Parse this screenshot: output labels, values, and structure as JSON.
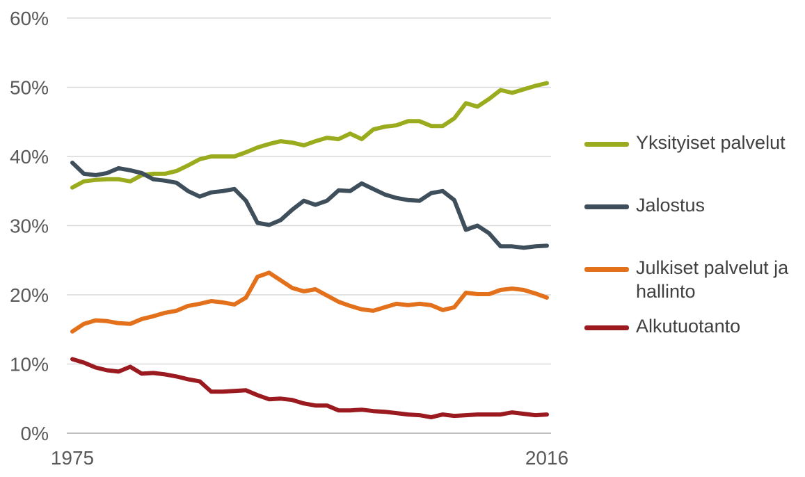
{
  "chart_data": {
    "type": "line",
    "x_start": 1975,
    "x_end": 2016,
    "xtick_labels": [
      "1975",
      "2016"
    ],
    "yticks": [
      0,
      10,
      20,
      30,
      40,
      50,
      60
    ],
    "ytick_labels": [
      "0%",
      "10%",
      "20%",
      "30%",
      "40%",
      "50%",
      "60%"
    ],
    "ylim": [
      0,
      60
    ],
    "grid": true,
    "legend_position": "right",
    "series": [
      {
        "name": "Yksityiset palvelut",
        "color": "#9bab1e",
        "values": [
          35.5,
          36.4,
          36.6,
          36.7,
          36.7,
          36.4,
          37.3,
          37.5,
          37.5,
          37.9,
          38.7,
          39.6,
          40.0,
          40.0,
          40.0,
          40.6,
          41.3,
          41.8,
          42.2,
          42.0,
          41.6,
          42.2,
          42.7,
          42.5,
          43.3,
          42.5,
          43.9,
          44.3,
          44.5,
          45.1,
          45.1,
          44.4,
          44.4,
          45.5,
          47.7,
          47.2,
          48.3,
          49.6,
          49.2,
          49.7,
          50.2,
          50.6
        ]
      },
      {
        "name": "Jalostus",
        "color": "#3e4f5b",
        "values": [
          39.1,
          37.5,
          37.3,
          37.6,
          38.3,
          38.0,
          37.6,
          36.7,
          36.5,
          36.2,
          35.0,
          34.2,
          34.8,
          35.0,
          35.3,
          33.6,
          30.4,
          30.1,
          30.8,
          32.3,
          33.6,
          33.0,
          33.6,
          35.1,
          35.0,
          36.1,
          35.3,
          34.5,
          34.0,
          33.7,
          33.6,
          34.7,
          35.0,
          33.7,
          29.4,
          30.0,
          28.9,
          27.0,
          27.0,
          26.8,
          27.0,
          27.1
        ]
      },
      {
        "name": "Julkiset palvelut ja hallinto",
        "color": "#e3701b",
        "values": [
          14.7,
          15.8,
          16.3,
          16.2,
          15.9,
          15.8,
          16.5,
          16.9,
          17.4,
          17.7,
          18.4,
          18.7,
          19.1,
          18.9,
          18.6,
          19.6,
          22.6,
          23.2,
          22.1,
          21.0,
          20.5,
          20.8,
          19.9,
          19.0,
          18.4,
          17.9,
          17.7,
          18.2,
          18.7,
          18.5,
          18.7,
          18.5,
          17.8,
          18.2,
          20.3,
          20.1,
          20.1,
          20.7,
          20.9,
          20.7,
          20.2,
          19.6
        ]
      },
      {
        "name": "Alkutuotanto",
        "color": "#9a1a1f",
        "values": [
          10.7,
          10.2,
          9.5,
          9.1,
          8.9,
          9.6,
          8.6,
          8.7,
          8.5,
          8.2,
          7.8,
          7.5,
          6.0,
          6.0,
          6.1,
          6.2,
          5.5,
          4.9,
          5.0,
          4.8,
          4.3,
          4.0,
          4.0,
          3.3,
          3.3,
          3.4,
          3.2,
          3.1,
          2.9,
          2.7,
          2.6,
          2.3,
          2.7,
          2.5,
          2.6,
          2.7,
          2.7,
          2.7,
          3.0,
          2.8,
          2.6,
          2.7
        ]
      }
    ]
  }
}
